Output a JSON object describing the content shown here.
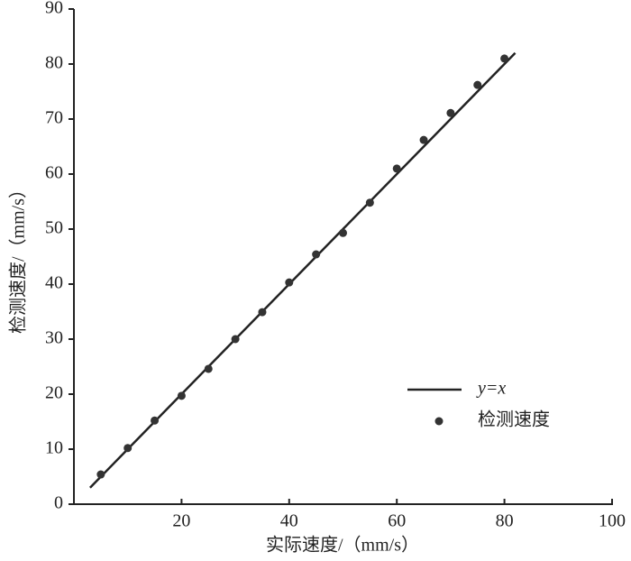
{
  "chart_data": {
    "type": "scatter",
    "x_label": "实际速度/（mm/s）",
    "y_label": "检测速度/（mm/s）",
    "xlim": [
      0,
      100
    ],
    "ylim": [
      0,
      90
    ],
    "xticks": [
      20,
      40,
      60,
      80,
      100
    ],
    "yticks": [
      0,
      10,
      20,
      30,
      40,
      50,
      60,
      70,
      80,
      90
    ],
    "legend": "lower right",
    "series": [
      {
        "name": "y=x",
        "type": "line",
        "color": "#222222",
        "x": [
          3,
          82
        ],
        "values": [
          3,
          82
        ]
      },
      {
        "name": "检测速度",
        "type": "scatter",
        "color": "#333333",
        "x": [
          5,
          10,
          15,
          20,
          25,
          30,
          35,
          40,
          45,
          50,
          55,
          60,
          65,
          70,
          75,
          80
        ],
        "values": [
          5.4,
          10.2,
          15.2,
          19.7,
          24.6,
          30.0,
          34.9,
          40.3,
          45.4,
          49.3,
          54.8,
          61.0,
          66.2,
          71.1,
          76.2,
          81.0
        ]
      }
    ]
  }
}
